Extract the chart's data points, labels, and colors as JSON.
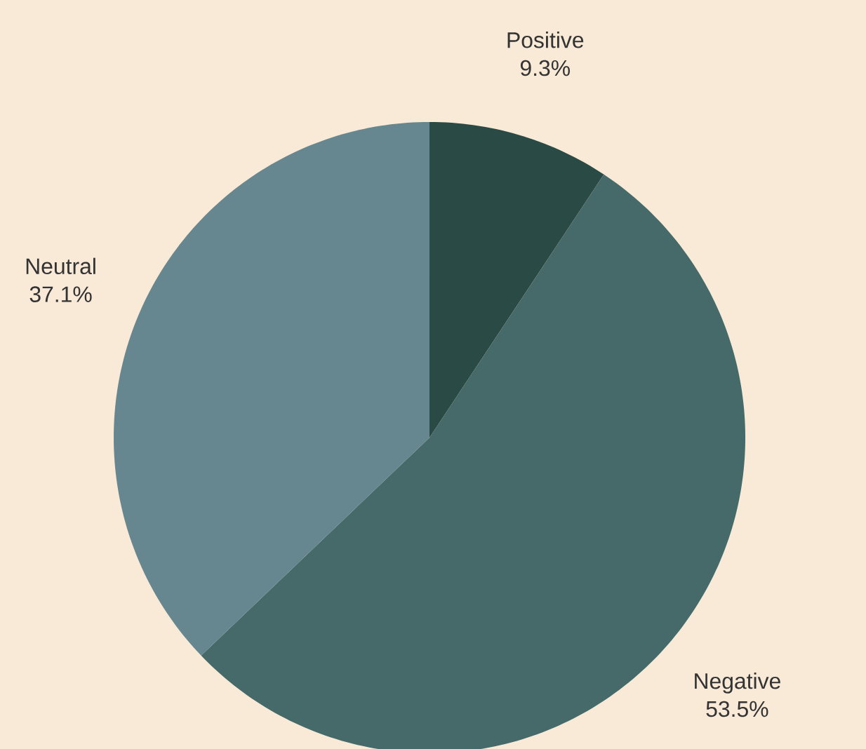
{
  "chart_data": {
    "type": "pie",
    "categories": [
      "Positive",
      "Negative",
      "Neutral"
    ],
    "values": [
      9.3,
      53.5,
      37.1
    ],
    "value_labels": [
      "9.3%",
      "53.5%",
      "37.1%"
    ],
    "colors": [
      "#2a4a45",
      "#456a69",
      "#66878f"
    ]
  }
}
